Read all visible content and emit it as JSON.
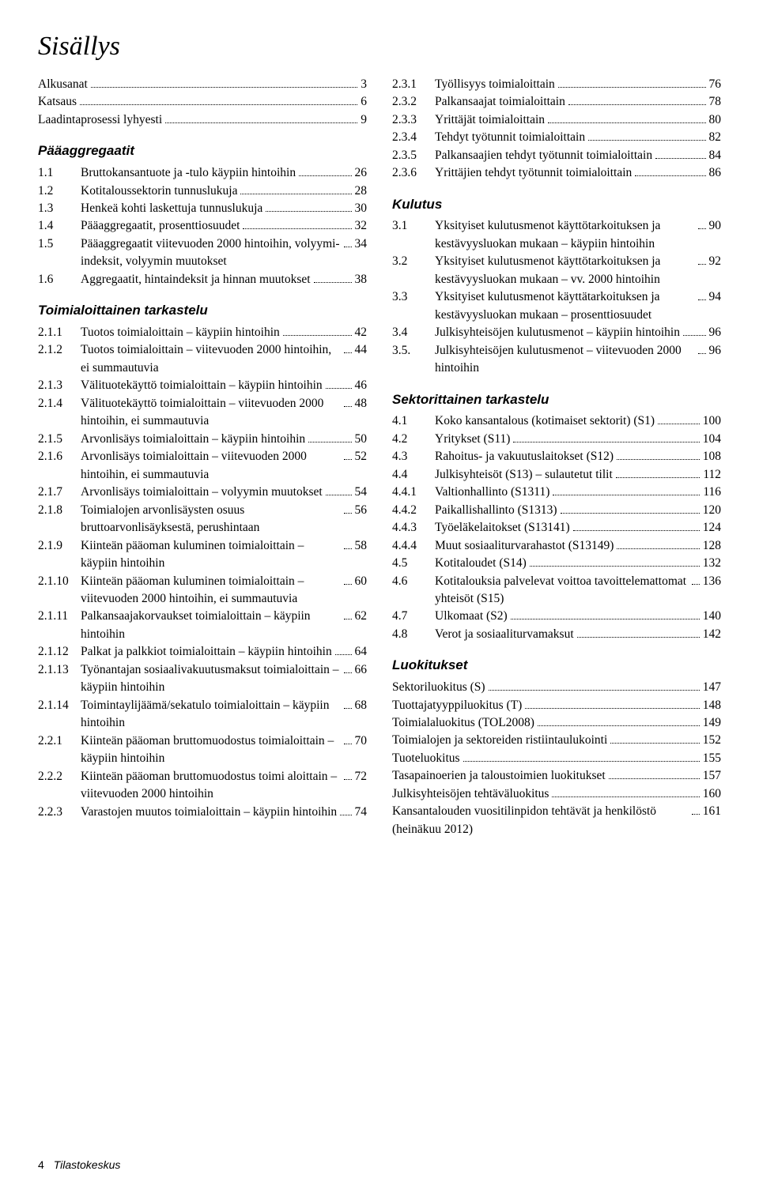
{
  "title": "Sisällys",
  "footer_page": "4",
  "footer_text": "Tilastokeskus",
  "front": [
    {
      "label": "Alkusanat",
      "page": "3"
    },
    {
      "label": "Katsaus",
      "page": "6"
    },
    {
      "label": "Laadintaprosessi lyhyesti",
      "page": "9"
    }
  ],
  "sections": [
    {
      "head": "Pääaggregaatit",
      "items": [
        {
          "num": "1.1",
          "label": "Bruttokansantuote ja -tulo käypiin hintoihin",
          "page": "26"
        },
        {
          "num": "1.2",
          "label": "Kotitaloussektorin tunnuslukuja",
          "page": "28"
        },
        {
          "num": "1.3",
          "label": "Henkeä kohti laskettuja tunnuslukuja",
          "page": "30"
        },
        {
          "num": "1.4",
          "label": "Pääaggregaatit, prosenttiosuudet",
          "page": "32"
        },
        {
          "num": "1.5",
          "label": "Pääaggregaatit viitevuoden 2000 hintoihin, volyymi-indeksit, volyymin muutokset",
          "page": "34"
        },
        {
          "num": "1.6",
          "label": "Aggregaatit, hintaindeksit ja hinnan muutokset",
          "page": "38"
        }
      ]
    },
    {
      "head": "Toimialoittainen tarkastelu",
      "items": [
        {
          "num": "2.1.1",
          "label": "Tuotos toimialoittain – käypiin hintoihin",
          "page": "42"
        },
        {
          "num": "2.1.2",
          "label": "Tuotos toimialoittain – viitevuoden 2000 hintoihin, ei summautuvia",
          "page": "44"
        },
        {
          "num": "2.1.3",
          "label": "Välituotekäyttö toimialoittain – käypiin hintoihin",
          "page": "46"
        },
        {
          "num": "2.1.4",
          "label": "Välituotekäyttö toimialoittain – viitevuoden 2000 hintoihin, ei summautuvia",
          "page": "48"
        },
        {
          "num": "2.1.5",
          "label": "Arvonlisäys toimialoittain – käypiin hintoihin",
          "page": "50"
        },
        {
          "num": "2.1.6",
          "label": "Arvonlisäys toimialoittain – viitevuoden 2000 hintoihin, ei summautuvia",
          "page": "52"
        },
        {
          "num": "2.1.7",
          "label": "Arvonlisäys toimialoittain – volyymin muutokset",
          "page": "54"
        },
        {
          "num": "2.1.8",
          "label": "Toimialojen arvonlisäysten osuus bruttoarvonlisäyksestä, perushintaan",
          "page": "56"
        },
        {
          "num": "2.1.9",
          "label": "Kiinteän pääoman kuluminen toimialoittain – käypiin hintoihin",
          "page": "58"
        },
        {
          "num": "2.1.10",
          "label": "Kiinteän pääoman kuluminen toimialoittain – viitevuoden 2000 hintoihin, ei summautuvia",
          "page": "60"
        },
        {
          "num": "2.1.11",
          "label": "Palkansaajakorvaukset toimialoittain – käypiin hintoihin",
          "page": "62"
        },
        {
          "num": "2.1.12",
          "label": "Palkat ja palkkiot toimialoittain – käypiin hintoihin",
          "page": "64"
        },
        {
          "num": "2.1.13",
          "label": "Työnantajan sosiaalivakuutusmaksut toimialoittain – käypiin hintoihin",
          "page": "66"
        },
        {
          "num": "2.1.14",
          "label": "Toimintaylijäämä/sekatulo toimialoittain – käypiin hintoihin",
          "page": "68"
        },
        {
          "num": "2.2.1",
          "label": "Kiinteän pääoman bruttomuodostus toimialoittain – käypiin hintoihin",
          "page": "70"
        },
        {
          "num": "2.2.2",
          "label": "Kiinteän pääoman bruttomuodostus toimi aloittain – viitevuoden 2000 hintoihin",
          "page": "72"
        },
        {
          "num": "2.2.3",
          "label": "Varastojen muutos toimialoittain – käypiin hintoihin",
          "page": "74"
        },
        {
          "num": "2.3.1",
          "label": "Työllisyys toimialoittain",
          "page": "76"
        },
        {
          "num": "2.3.2",
          "label": "Palkansaajat toimialoittain",
          "page": "78"
        },
        {
          "num": "2.3.3",
          "label": "Yrittäjät toimialoittain",
          "page": "80"
        },
        {
          "num": "2.3.4",
          "label": "Tehdyt työtunnit toimialoittain",
          "page": "82"
        },
        {
          "num": "2.3.5",
          "label": "Palkansaajien tehdyt työtunnit toimialoittain",
          "page": "84"
        },
        {
          "num": "2.3.6",
          "label": "Yrittäjien tehdyt työtunnit toimialoittain",
          "page": "86"
        }
      ]
    },
    {
      "head": "Kulutus",
      "items": [
        {
          "num": "3.1",
          "label": "Yksityiset kulutusmenot käyttötarkoituksen ja kestävyysluokan mukaan – käypiin hintoihin",
          "page": "90"
        },
        {
          "num": "3.2",
          "label": "Yksityiset kulutusmenot käyttötarkoituksen ja kestävyysluokan mukaan – vv. 2000 hintoihin",
          "page": "92"
        },
        {
          "num": "3.3",
          "label": "Yksityiset kulutusmenot käyttätarkoituksen ja kestävyysluokan mukaan – prosenttiosuudet",
          "page": "94"
        },
        {
          "num": "3.4",
          "label": "Julkisyhteisöjen kulutusmenot – käypiin hintoihin",
          "page": "96"
        },
        {
          "num": "3.5.",
          "label": "Julkisyhteisöjen kulutusmenot – viitevuoden 2000 hintoihin",
          "page": "96"
        }
      ]
    },
    {
      "head": "Sektorittainen tarkastelu",
      "items": [
        {
          "num": "4.1",
          "label": "Koko kansantalous (kotimaiset sektorit) (S1)",
          "page": "100"
        },
        {
          "num": "4.2",
          "label": "Yritykset (S11)",
          "page": "104"
        },
        {
          "num": "4.3",
          "label": "Rahoitus- ja vakuutuslaitokset (S12)",
          "page": "108"
        },
        {
          "num": "4.4",
          "label": "Julkisyhteisöt (S13) – sulautetut tilit",
          "page": "112"
        },
        {
          "num": "4.4.1",
          "label": "Valtionhallinto (S1311)",
          "page": "116"
        },
        {
          "num": "4.4.2",
          "label": "Paikallishallinto (S1313)",
          "page": "120"
        },
        {
          "num": "4.4.3",
          "label": "Työeläkelaitokset (S13141)",
          "page": "124"
        },
        {
          "num": "4.4.4",
          "label": "Muut sosiaaliturvarahastot (S13149)",
          "page": "128"
        },
        {
          "num": "4.5",
          "label": "Kotitaloudet (S14)",
          "page": "132"
        },
        {
          "num": "4.6",
          "label": "Kotitalouksia palvelevat voittoa tavoittelemattomat yhteisöt (S15)",
          "page": "136"
        },
        {
          "num": "4.7",
          "label": "Ulkomaat (S2)",
          "page": "140"
        },
        {
          "num": "4.8",
          "label": "Verot ja sosiaaliturvamaksut",
          "page": "142"
        }
      ]
    },
    {
      "head": "Luokitukset",
      "noindex": true,
      "items": [
        {
          "label": "Sektoriluokitus (S)",
          "page": "147"
        },
        {
          "label": "Tuottajatyyppiluokitus (T)",
          "page": "148"
        },
        {
          "label": "Toimialaluokitus (TOL2008)",
          "page": "149"
        },
        {
          "label": "Toimialojen ja sektoreiden ristiintaulukointi",
          "page": "152"
        },
        {
          "label": "Tuoteluokitus",
          "page": "155"
        },
        {
          "label": "Tasapainoerien ja taloustoimien luokitukset",
          "page": "157"
        },
        {
          "label": "Julkisyhteisöjen tehtäväluokitus",
          "page": "160"
        },
        {
          "label": "Kansantalouden vuositilinpidon tehtävät ja henkilöstö (heinäkuu 2012)",
          "page": "161"
        }
      ]
    }
  ]
}
